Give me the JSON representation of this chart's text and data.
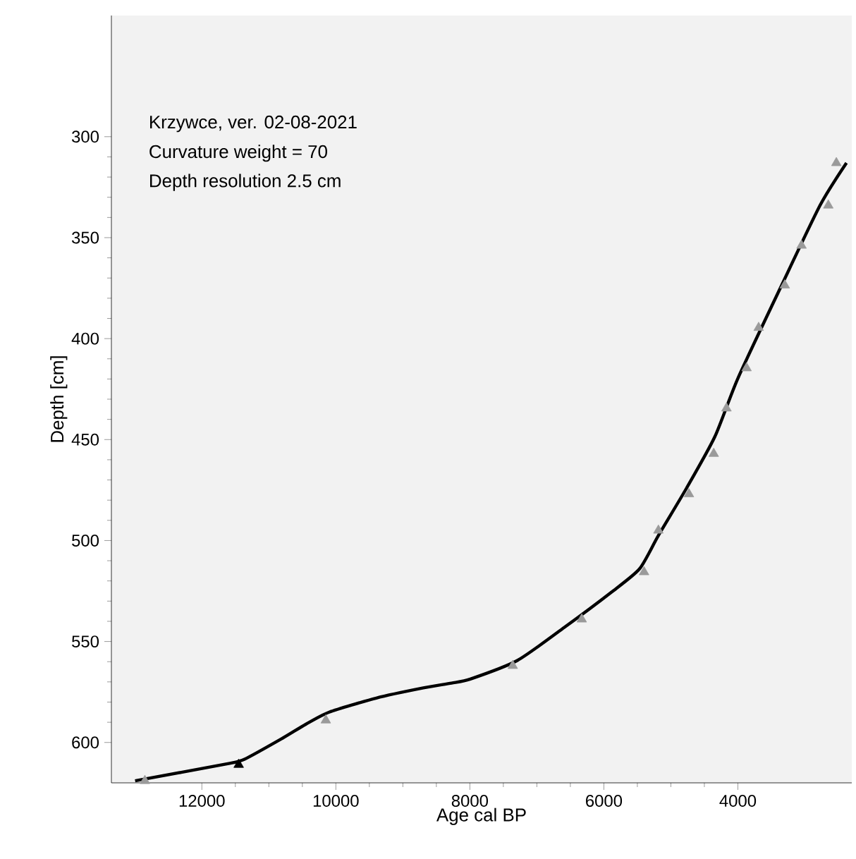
{
  "chart_data": {
    "type": "line",
    "xlabel": "Age cal BP",
    "ylabel": "Depth [cm]",
    "annotations": [
      "Krzywce, ver. 02-08-2021",
      "Curvature weight = 70",
      "Depth resolution 2.5 cm"
    ],
    "xlim": [
      13350,
      2300
    ],
    "ylim": [
      620,
      240
    ],
    "xticks": [
      12000,
      10000,
      8000,
      6000,
      4000
    ],
    "yticks": [
      300,
      350,
      400,
      450,
      500,
      550,
      600
    ],
    "grid": false,
    "series": [
      {
        "color": "#000000",
        "marker": "none",
        "line_style": "solid",
        "x": [
          12996,
          11642,
          11362,
          10800,
          10449,
          10099,
          9396,
          8695,
          8274,
          7993,
          7291,
          6589,
          5888,
          5467,
          5186,
          4765,
          4344,
          4000,
          3347,
          2770,
          2379
        ],
        "values": [
          619,
          610.7,
          608.3,
          598,
          591,
          585,
          578,
          573,
          570.6,
          568.6,
          559.4,
          543,
          525.6,
          514,
          497.5,
          474,
          448.6,
          419.7,
          373.6,
          333.8,
          313
        ]
      },
      {
        "type": "scatter",
        "marker": "triangle",
        "colors": [
          "#9a9a9a",
          "#000000",
          "#9a9a9a",
          "#9a9a9a",
          "#9a9a9a",
          "#9a9a9a",
          "#9a9a9a",
          "#9a9a9a",
          "#9a9a9a",
          "#9a9a9a",
          "#9a9a9a",
          "#9a9a9a",
          "#9a9a9a",
          "#9a9a9a",
          "#9a9a9a",
          "#9a9a9a"
        ],
        "x": [
          12850,
          11450,
          10150,
          7360,
          6330,
          5400,
          5186,
          4730,
          4360,
          4170,
          3870,
          3690,
          3300,
          3050,
          2650,
          2530
        ],
        "values": [
          619,
          611,
          589,
          562,
          539,
          515.6,
          495,
          477,
          457,
          434.5,
          414.6,
          394.6,
          373.6,
          353.9,
          334,
          313
        ]
      }
    ]
  }
}
